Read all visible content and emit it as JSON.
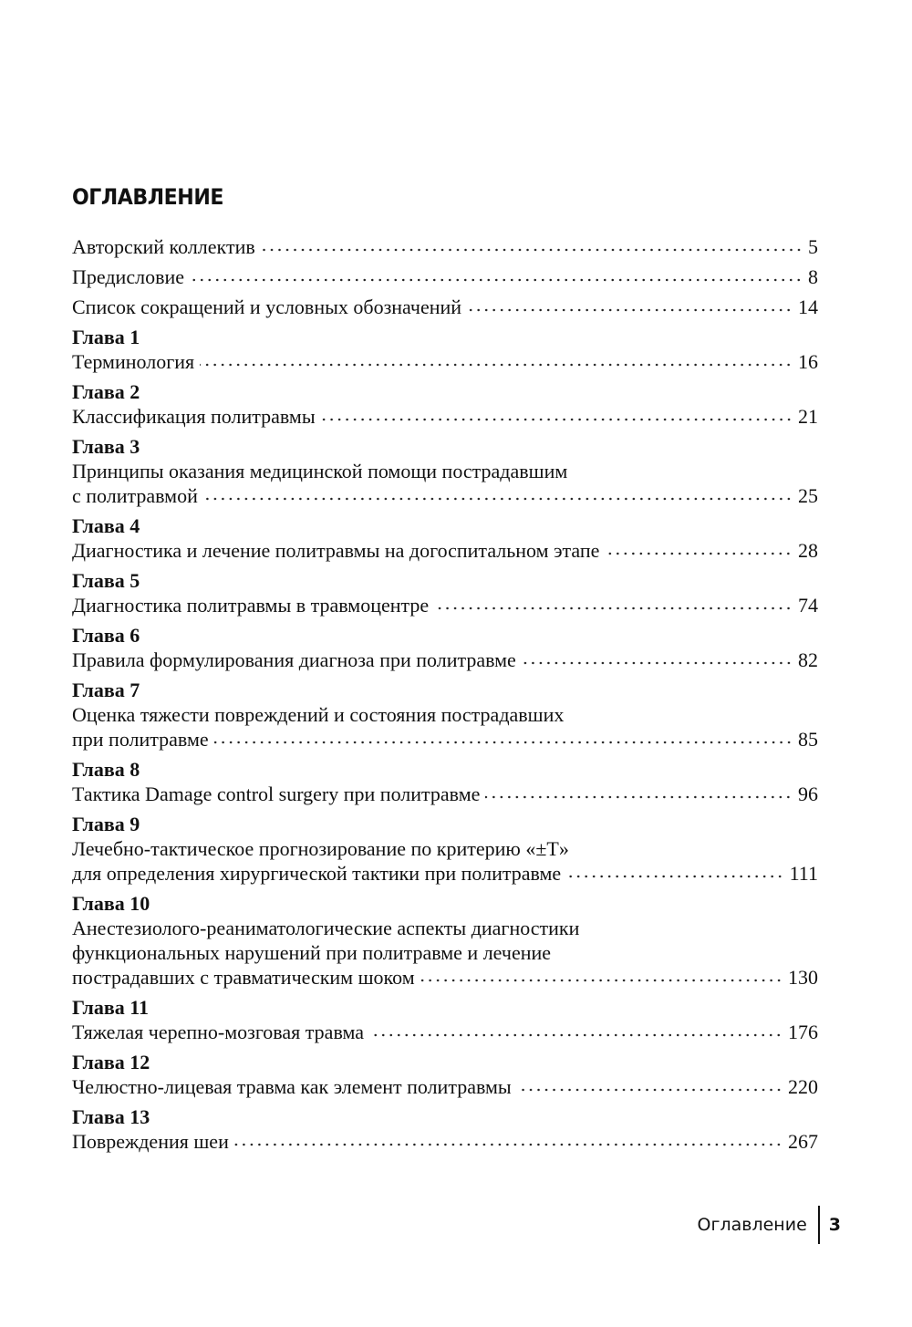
{
  "title": "ОГЛАВЛЕНИЕ",
  "entries": [
    {
      "chapter": "",
      "lines": [
        "Авторский коллектив"
      ],
      "page": "5"
    },
    {
      "chapter": "",
      "lines": [
        "Предисловие"
      ],
      "page": "8"
    },
    {
      "chapter": "",
      "lines": [
        "Список сокращений и условных обозначений"
      ],
      "page": "14"
    },
    {
      "chapter": "Глава 1",
      "lines": [
        "Терминология"
      ],
      "page": "16"
    },
    {
      "chapter": "Глава 2",
      "lines": [
        "Классификация политравмы"
      ],
      "page": "21"
    },
    {
      "chapter": "Глава 3",
      "lines": [
        "Принципы оказания медицинской помощи пострадавшим",
        "с политравмой"
      ],
      "page": "25"
    },
    {
      "chapter": "Глава 4",
      "lines": [
        "Диагностика и лечение политравмы на догоспитальном этапе"
      ],
      "page": "28"
    },
    {
      "chapter": "Глава 5",
      "lines": [
        "Диагностика политравмы в травмоцентре"
      ],
      "page": "74"
    },
    {
      "chapter": "Глава 6",
      "lines": [
        "Правила формулирования диагноза при политравме"
      ],
      "page": "82"
    },
    {
      "chapter": "Глава 7",
      "lines": [
        "Оценка тяжести повреждений и состояния пострадавших",
        "при политравме"
      ],
      "page": "85"
    },
    {
      "chapter": "Глава 8",
      "lines": [
        "Тактика Damage control surgery при политравме"
      ],
      "page": "96"
    },
    {
      "chapter": "Глава 9",
      "lines": [
        "Лечебно-тактическое прогнозирование по критерию «±T»",
        "для определения хирургической тактики при политравме"
      ],
      "page": "111"
    },
    {
      "chapter": "Глава 10",
      "lines": [
        "Анестезиолого-реаниматологические аспекты диагностики",
        "функциональных нарушений при политравме и лечение",
        "пострадавших с травматическим шоком"
      ],
      "page": "130"
    },
    {
      "chapter": "Глава 11",
      "lines": [
        "Тяжелая черепно-мозговая травма"
      ],
      "page": "176"
    },
    {
      "chapter": "Глава 12",
      "lines": [
        "Челюстно-лицевая травма как элемент политравмы"
      ],
      "page": "220"
    },
    {
      "chapter": "Глава 13",
      "lines": [
        "Повреждения шеи"
      ],
      "page": "267"
    }
  ],
  "footer": {
    "section": "Оглавление",
    "page_number": "3"
  }
}
